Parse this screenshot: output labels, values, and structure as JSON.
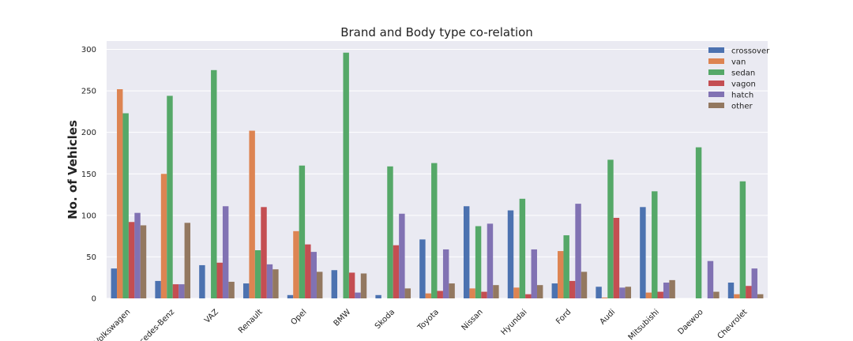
{
  "chart_data": {
    "type": "bar",
    "title": "Brand and Body type co-relation",
    "xlabel": "",
    "ylabel": "No. of Vehicles",
    "ylim": [
      0,
      310
    ],
    "yticks": [
      0,
      50,
      100,
      150,
      200,
      250,
      300
    ],
    "grid": true,
    "legend_position": "top-right",
    "categories": [
      "Volkswagen",
      "Mercedes-Benz",
      "VAZ",
      "Renault",
      "Opel",
      "BMW",
      "Skoda",
      "Toyota",
      "Nissan",
      "Hyundai",
      "Ford",
      "Audi",
      "Mitsubishi",
      "Daewoo",
      "Chevrolet"
    ],
    "series": [
      {
        "name": "crossover",
        "color": "#4c72b0",
        "values": [
          36,
          21,
          40,
          18,
          4,
          34,
          4,
          71,
          111,
          106,
          18,
          14,
          110,
          0,
          19
        ]
      },
      {
        "name": "van",
        "color": "#dd8452",
        "values": [
          252,
          150,
          0,
          202,
          81,
          0,
          0,
          6,
          12,
          13,
          57,
          1,
          7,
          0,
          5
        ]
      },
      {
        "name": "sedan",
        "color": "#55a868",
        "values": [
          223,
          244,
          275,
          58,
          160,
          296,
          159,
          163,
          87,
          120,
          76,
          167,
          129,
          182,
          141
        ]
      },
      {
        "name": "vagon",
        "color": "#c44e52",
        "values": [
          92,
          17,
          43,
          110,
          65,
          31,
          64,
          9,
          8,
          5,
          21,
          97,
          8,
          0,
          15
        ]
      },
      {
        "name": "hatch",
        "color": "#8172b3",
        "values": [
          103,
          17,
          111,
          41,
          56,
          7,
          102,
          59,
          90,
          59,
          114,
          13,
          19,
          45,
          36
        ]
      },
      {
        "name": "other",
        "color": "#937860",
        "values": [
          88,
          91,
          20,
          35,
          32,
          30,
          12,
          18,
          16,
          16,
          32,
          14,
          22,
          8,
          5
        ]
      }
    ]
  }
}
